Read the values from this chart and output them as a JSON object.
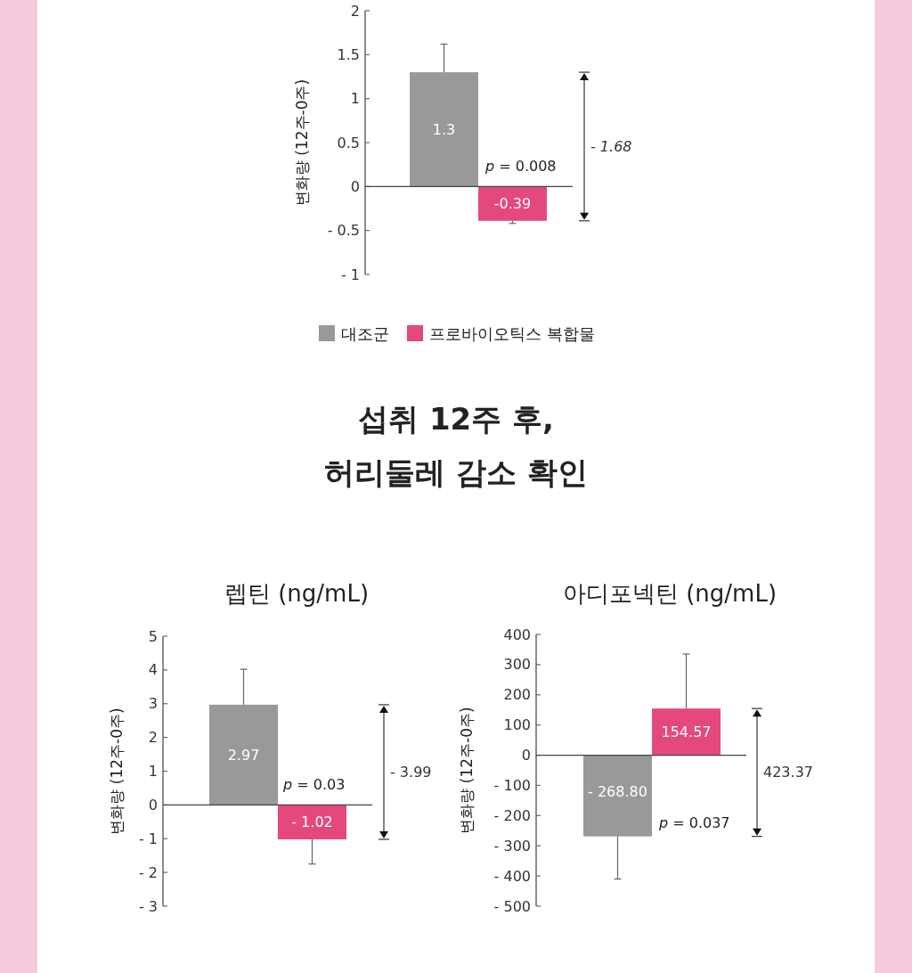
{
  "chart_data": [
    {
      "type": "bar",
      "ylabel": "변화량 (12주-0주)",
      "categories": [
        null
      ],
      "series": [
        {
          "name": "대조군",
          "color": "#999999",
          "values": [
            1.3
          ],
          "value_labels": [
            "1.3"
          ],
          "errors": [
            [
              1.3,
              1.62
            ]
          ]
        },
        {
          "name": "프로바이오틱스 복합물",
          "color": "#e5497c",
          "values": [
            -0.39
          ],
          "value_labels": [
            "-0.39"
          ],
          "errors": [
            [
              -0.42,
              -0.39
            ]
          ]
        }
      ],
      "ylim": [
        -1,
        2
      ],
      "yticks": [
        {
          "value": -1,
          "label": "- 1"
        },
        {
          "value": -0.5,
          "label": "- 0.5"
        },
        0,
        0.5,
        1,
        1.5,
        2
      ],
      "annotations": [
        "p = 0.008",
        "- 1.68"
      ],
      "legend": "bottom"
    },
    {
      "type": "other",
      "title": "섭취 12주 후,\n허리둘레 감소 확인"
    },
    {
      "type": "bar",
      "title": "렙틴 (ng/mL)",
      "ylabel": "변화량 (12주-0주)",
      "categories": [
        null
      ],
      "series": [
        {
          "color": "#999999",
          "values": [
            2.97
          ],
          "value_labels": [
            "2.97"
          ],
          "errors": [
            [
              2.97,
              4.02
            ]
          ]
        },
        {
          "color": "#e5497c",
          "values": [
            -1.02
          ],
          "value_labels": [
            "- 1.02"
          ],
          "errors": [
            [
              -1.75,
              -1.02
            ]
          ]
        }
      ],
      "ylim": [
        -3,
        5
      ],
      "yticks": [
        {
          "value": -3,
          "label": "- 3"
        },
        {
          "value": -2,
          "label": "- 2"
        },
        {
          "value": -1,
          "label": "- 1"
        },
        0,
        1,
        2,
        3,
        4,
        5
      ],
      "annotations": [
        "p = 0.03",
        "- 3.99"
      ],
      "legend": false
    },
    {
      "type": "bar",
      "title": "아디포넥틴 (ng/mL)",
      "ylabel": "변화량 (12주-0주)",
      "categories": [
        null
      ],
      "series": [
        {
          "color": "#999999",
          "values": [
            -268.8
          ],
          "value_labels": [
            "- 268.80"
          ],
          "errors": [
            [
              -410,
              -268.8
            ]
          ]
        },
        {
          "color": "#e5497c",
          "values": [
            154.57
          ],
          "value_labels": [
            "154.57"
          ],
          "errors": [
            [
              154.57,
              335
            ]
          ]
        }
      ],
      "ylim": [
        -500,
        400
      ],
      "yticks": [
        {
          "value": -500,
          "label": "- 500"
        },
        {
          "value": -400,
          "label": "- 400"
        },
        {
          "value": -300,
          "label": "- 300"
        },
        {
          "value": -200,
          "label": "- 200"
        },
        {
          "value": -100,
          "label": "- 100"
        },
        0,
        100,
        200,
        300,
        400
      ],
      "annotations": [
        "p = 0.037",
        "423.37"
      ],
      "legend": false
    }
  ]
}
